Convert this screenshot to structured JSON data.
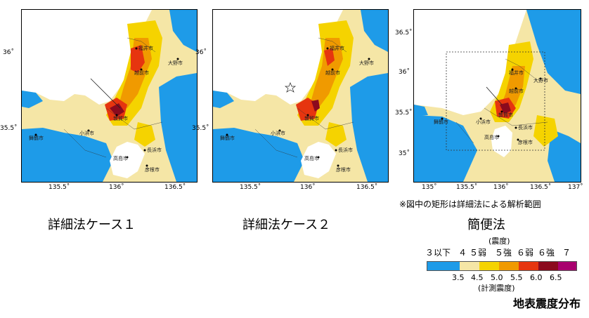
{
  "panels": [
    {
      "title": "詳細法ケース１",
      "x_ticks": [
        "135.5˚",
        "136˚",
        "136.5˚"
      ],
      "y_ticks": [
        "36˚",
        "35.5˚"
      ],
      "cities": [
        "福井市",
        "大野市",
        "越前市",
        "敦賀市",
        "小浜市",
        "舞鶴市",
        "高島市",
        "長浜市",
        "彦根市"
      ]
    },
    {
      "title": "詳細法ケース２",
      "x_ticks": [
        "135.5˚",
        "136˚",
        "136.5˚"
      ],
      "y_ticks": [
        "36˚",
        "35.5˚"
      ],
      "cities": [
        "福井市",
        "大野市",
        "越前市",
        "敦賀市",
        "小浜市",
        "舞鶴市",
        "高島市",
        "長浜市",
        "彦根市"
      ]
    },
    {
      "title": "簡便法",
      "x_ticks": [
        "135˚",
        "135.5˚",
        "136˚",
        "136.5˚",
        "137˚"
      ],
      "y_ticks": [
        "36.5˚",
        "36˚",
        "35.5˚",
        "35˚"
      ],
      "cities": [
        "福井市",
        "大野市",
        "越前市",
        "敦賀市",
        "小浜市",
        "舞鶴市",
        "高島市",
        "長浜市",
        "彦根市"
      ]
    }
  ],
  "note": "※図中の矩形は詳細法による解析範囲",
  "legend": {
    "top_label": "(震度)",
    "classes": [
      "３以下",
      "４",
      "５弱",
      "５強",
      "６弱",
      "６強",
      "７"
    ],
    "values": [
      "3.5",
      "4.5",
      "5.0",
      "5.5",
      "6.0",
      "6.5"
    ],
    "bottom_label": "(計測震度)",
    "colors": [
      "#1e9be8",
      "#f5e6a6",
      "#f5d300",
      "#f09a00",
      "#e6350f",
      "#8b0a1e",
      "#a8006e"
    ]
  },
  "figure_title": "地表震度分布"
}
